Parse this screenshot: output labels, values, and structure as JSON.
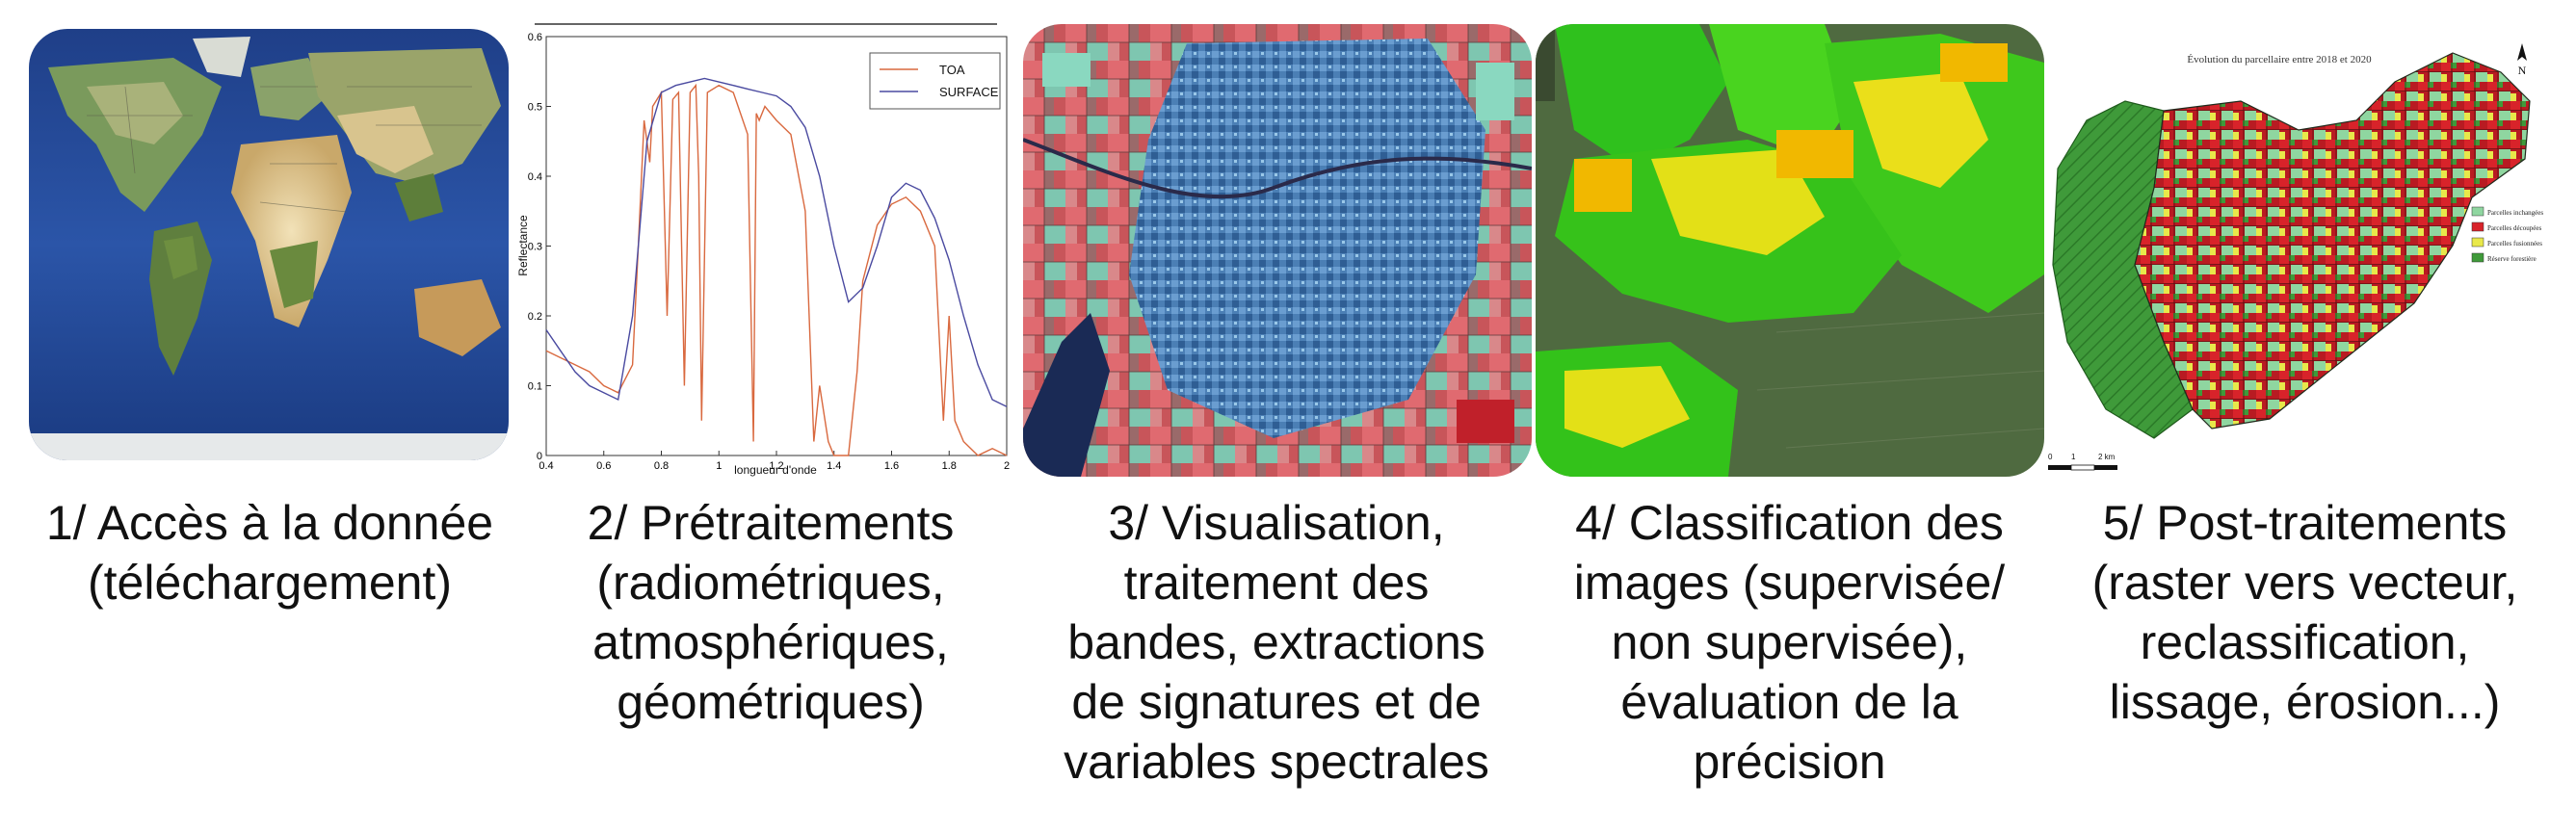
{
  "steps": [
    {
      "id": "1",
      "lines": [
        "1/ Accès à la donnée",
        "(téléchargement)"
      ],
      "image": "world-map-image"
    },
    {
      "id": "2",
      "lines": [
        "2/ Prétraitements",
        "(radiométriques,",
        "atmosphériques,",
        "géométriques)"
      ],
      "image": "reflectance-chart"
    },
    {
      "id": "3",
      "lines": [
        "3/ Visualisation,",
        "traitement des",
        "bandes, extractions",
        "de signatures et de",
        "variables spectrales"
      ],
      "image": "false-color-satellite-image"
    },
    {
      "id": "4",
      "lines": [
        "4/ Classification des",
        "images (supervisée/",
        "non supervisée),",
        "évaluation de la",
        "précision"
      ],
      "image": "classification-map"
    },
    {
      "id": "5",
      "lines": [
        "5/ Post-traitements",
        "(raster vers vecteur,",
        "reclassification,",
        "lissage, érosion...)"
      ],
      "image": "parcel-evolution-map"
    }
  ],
  "chart_data": {
    "type": "line",
    "xlabel": "longueur d'onde",
    "ylabel": "Reflectance",
    "xlim": [
      0.4,
      2.0
    ],
    "ylim": [
      0,
      0.6
    ],
    "xticks": [
      "0.4",
      "0.6",
      "0.8",
      "1",
      "1.2",
      "1.4",
      "1.6",
      "1.8",
      "2"
    ],
    "yticks": [
      "0",
      "0.1",
      "0.2",
      "0.3",
      "0.4",
      "0.5",
      "0.6"
    ],
    "series": [
      {
        "name": "TOA",
        "color": "#d9693f",
        "x": [
          0.4,
          0.45,
          0.5,
          0.55,
          0.6,
          0.65,
          0.7,
          0.72,
          0.74,
          0.76,
          0.77,
          0.8,
          0.82,
          0.84,
          0.86,
          0.88,
          0.9,
          0.92,
          0.93,
          0.94,
          0.96,
          1.0,
          1.05,
          1.1,
          1.12,
          1.13,
          1.14,
          1.16,
          1.2,
          1.25,
          1.3,
          1.33,
          1.35,
          1.38,
          1.4,
          1.45,
          1.48,
          1.5,
          1.55,
          1.6,
          1.65,
          1.7,
          1.75,
          1.78,
          1.8,
          1.82,
          1.85,
          1.9,
          1.95,
          2.0
        ],
        "y": [
          0.15,
          0.14,
          0.13,
          0.12,
          0.1,
          0.09,
          0.13,
          0.3,
          0.48,
          0.42,
          0.5,
          0.52,
          0.2,
          0.51,
          0.52,
          0.1,
          0.52,
          0.53,
          0.4,
          0.05,
          0.52,
          0.53,
          0.52,
          0.46,
          0.02,
          0.49,
          0.48,
          0.5,
          0.48,
          0.46,
          0.35,
          0.02,
          0.1,
          0.02,
          0.0,
          0.0,
          0.12,
          0.25,
          0.33,
          0.36,
          0.37,
          0.35,
          0.3,
          0.05,
          0.2,
          0.05,
          0.02,
          0.0,
          0.01,
          0.0
        ]
      },
      {
        "name": "SURFACE",
        "color": "#4a4aa0",
        "x": [
          0.4,
          0.45,
          0.5,
          0.55,
          0.6,
          0.65,
          0.7,
          0.75,
          0.8,
          0.85,
          0.9,
          0.95,
          1.0,
          1.05,
          1.1,
          1.15,
          1.2,
          1.25,
          1.3,
          1.35,
          1.4,
          1.45,
          1.5,
          1.55,
          1.6,
          1.65,
          1.7,
          1.75,
          1.8,
          1.85,
          1.9,
          1.95,
          2.0
        ],
        "y": [
          0.18,
          0.15,
          0.12,
          0.1,
          0.09,
          0.08,
          0.2,
          0.45,
          0.52,
          0.53,
          0.535,
          0.54,
          0.535,
          0.53,
          0.525,
          0.52,
          0.515,
          0.5,
          0.47,
          0.4,
          0.3,
          0.22,
          0.24,
          0.3,
          0.37,
          0.39,
          0.38,
          0.34,
          0.28,
          0.2,
          0.13,
          0.08,
          0.07
        ]
      }
    ]
  },
  "map5": {
    "title": "Évolution du parcellaire entre 2018 et 2020",
    "north": "N",
    "legend": [
      {
        "label": "Parcelles inchangées",
        "color": "#8fd6a0"
      },
      {
        "label": "Parcelles découpées",
        "color": "#d8232a"
      },
      {
        "label": "Parcelles fusionnées",
        "color": "#e8e84a"
      },
      {
        "label": "Réserve forestière",
        "color": "#3f9a3a"
      }
    ],
    "scale": [
      "0",
      "1",
      "2 km"
    ]
  },
  "colors": {
    "caption": "#111111"
  }
}
